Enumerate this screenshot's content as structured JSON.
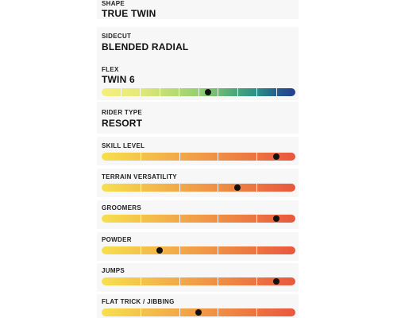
{
  "specs": {
    "shape": {
      "label": "SHAPE",
      "value": "TRUE TWIN"
    },
    "sidecut": {
      "label": "SIDECUT",
      "value": "BLENDED RADIAL"
    },
    "flex": {
      "label": "FLEX",
      "value": "TWIN 6",
      "level": 0.55
    },
    "rider_type": {
      "label": "RIDER TYPE",
      "value": "RESORT"
    }
  },
  "ratings": [
    {
      "label": "SKILL LEVEL",
      "level": 0.9
    },
    {
      "label": "TERRAIN VERSATILITY",
      "level": 0.7
    },
    {
      "label": "GROOMERS",
      "level": 0.9
    },
    {
      "label": "POWDER",
      "level": 0.3
    },
    {
      "label": "JUMPS",
      "level": 0.9
    },
    {
      "label": "FLAT TRICK / JIBBING",
      "level": 0.5
    }
  ],
  "colors": {
    "warm_scale": [
      "#f7e04e",
      "#f3b64a",
      "#ef8f45",
      "#e9573e"
    ],
    "flex_scale": [
      "#f6ef7c",
      "#bbdc73",
      "#4ea979",
      "#2a8f87",
      "#233f8e"
    ],
    "marker": "#111111"
  }
}
